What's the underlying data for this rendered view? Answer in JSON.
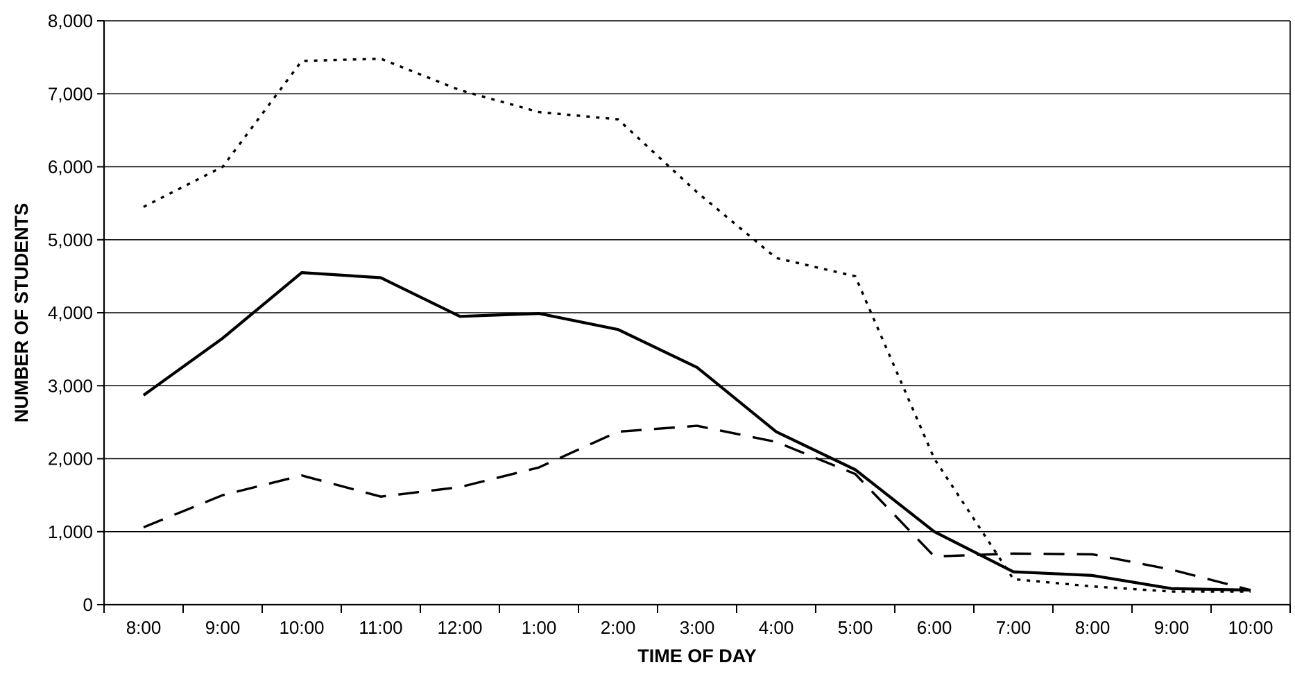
{
  "chart_data": {
    "type": "line",
    "title": "",
    "xlabel": "TIME OF DAY",
    "ylabel": "NUMBER OF STUDENTS",
    "categories": [
      "8:00",
      "9:00",
      "10:00",
      "11:00",
      "12:00",
      "1:00",
      "2:00",
      "3:00",
      "4:00",
      "5:00",
      "6:00",
      "7:00",
      "8:00",
      "9:00",
      "10:00"
    ],
    "y_ticks": [
      "0",
      "1,000",
      "2,000",
      "3,000",
      "4,000",
      "5,000",
      "6,000",
      "7,000",
      "8,000"
    ],
    "y_tick_values": [
      0,
      1000,
      2000,
      3000,
      4000,
      5000,
      6000,
      7000,
      8000
    ],
    "ylim": [
      0,
      8000
    ],
    "grid": "horizontal",
    "legend": "none",
    "series": [
      {
        "style": "dotted",
        "color": "#000000",
        "values": [
          5450,
          6000,
          7450,
          7480,
          7050,
          6750,
          6650,
          5650,
          4750,
          4500,
          2000,
          350,
          250,
          180,
          180
        ]
      },
      {
        "style": "solid",
        "color": "#000000",
        "values": [
          2870,
          3650,
          4550,
          4480,
          3950,
          3990,
          3770,
          3250,
          2370,
          1850,
          1000,
          450,
          400,
          220,
          200
        ]
      },
      {
        "style": "dashed",
        "color": "#000000",
        "values": [
          1060,
          1500,
          1770,
          1480,
          1610,
          1880,
          2370,
          2450,
          2230,
          1790,
          660,
          700,
          690,
          480,
          200
        ]
      }
    ]
  }
}
